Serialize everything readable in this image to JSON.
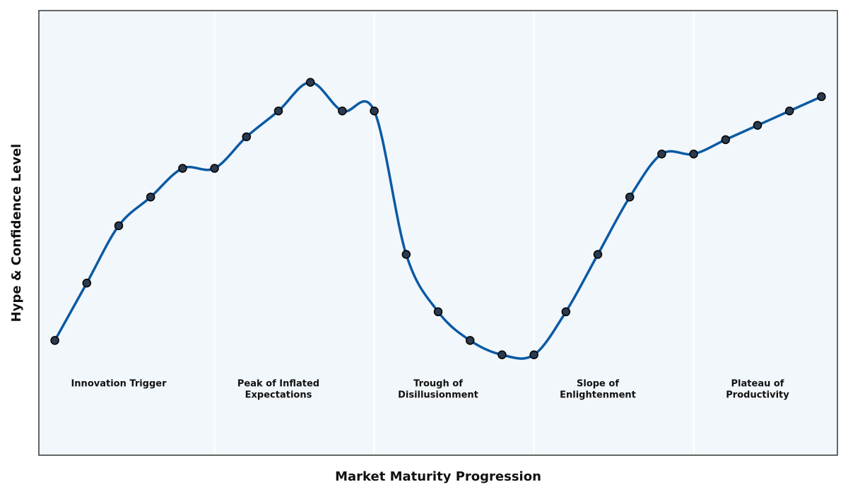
{
  "colors": {
    "plot_background": "#f2f7fb",
    "line": "#0b5aa3",
    "marker_fill": "#2b3a4e",
    "marker_edge": "#000000",
    "frame": "#333333",
    "separator": "#ffffff"
  },
  "chart_data": {
    "type": "line",
    "title": "",
    "xlabel": "Market Maturity Progression",
    "ylabel": "Hype & Confidence Level",
    "x": [
      0,
      1,
      2,
      3,
      4,
      5,
      6,
      7,
      8,
      9,
      10,
      11,
      12,
      13,
      14,
      15,
      16,
      17,
      18,
      19,
      20,
      21,
      22,
      23,
      24
    ],
    "values": [
      0.15,
      0.35,
      0.55,
      0.65,
      0.75,
      0.75,
      0.86,
      0.95,
      1.05,
      0.95,
      0.95,
      0.45,
      0.25,
      0.15,
      0.1,
      0.1,
      0.25,
      0.45,
      0.65,
      0.8,
      0.8,
      0.85,
      0.9,
      0.95,
      1.0
    ],
    "xlim": [
      -0.5,
      24.5
    ],
    "ylim": [
      -0.25,
      1.3
    ],
    "grid": false,
    "ticks_visible": false,
    "phase_boundaries": [
      5,
      10,
      15,
      20
    ],
    "phases": [
      {
        "lines": [
          "Innovation Trigger"
        ],
        "x_center": 2
      },
      {
        "lines": [
          "Peak of Inflated",
          "Expectations"
        ],
        "x_center": 7
      },
      {
        "lines": [
          "Trough of",
          "Disillusionment"
        ],
        "x_center": 12
      },
      {
        "lines": [
          "Slope of",
          "Enlightenment"
        ],
        "x_center": 17
      },
      {
        "lines": [
          "Plateau of",
          "Productivity"
        ],
        "x_center": 22
      }
    ],
    "phase_label_y": -0.01
  }
}
